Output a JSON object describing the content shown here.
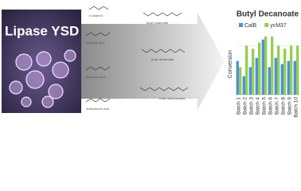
{
  "image_text": {
    "label": "Lipase YSD"
  },
  "scheme": {
    "reactant": "n-butanol",
    "acids": [
      "octanoic acid",
      "decanoic acid",
      "dodecanoic acid"
    ],
    "products": [
      "butyl octanoate",
      "butyl decanoate",
      "butyl dodecanoate"
    ]
  },
  "chart_data": {
    "type": "bar",
    "title": "Butyl Decanoate",
    "y_label": "Conversion",
    "categories": [
      "Batch 1",
      "Batch 2",
      "Batch 3",
      "Batch 4",
      "Batch 5",
      "Batch 6",
      "Batch 7",
      "Batch 8",
      "Batch 9",
      "Batch 10"
    ],
    "series": [
      {
        "name": "CalB",
        "color": "#4f8fdc",
        "values": [
          55,
          30,
          45,
          60,
          90,
          45,
          60,
          50,
          55,
          55
        ]
      },
      {
        "name": "ycM37",
        "color": "#92d050",
        "values": [
          45,
          80,
          75,
          85,
          95,
          95,
          80,
          75,
          80,
          80
        ]
      }
    ],
    "ylim": [
      0,
      100
    ],
    "legend": "top"
  }
}
